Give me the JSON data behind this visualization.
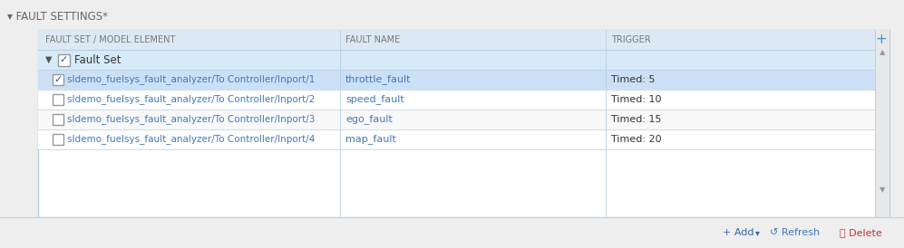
{
  "title": "FAULT SETTINGS*",
  "title_color": "#666666",
  "title_arrow": "▾",
  "bg_color": "#eeeeee",
  "panel_bg": "#ffffff",
  "header_bg": "#dce9f5",
  "selected_row_bg": "#cce0f5",
  "normal_row_bg": "#ffffff",
  "alt_row_bg": "#f5f5f5",
  "border_color": "#b8cfe0",
  "header_text_color": "#777777",
  "col_headers": [
    "FAULT SET / MODEL ELEMENT",
    "FAULT NAME",
    "TRIGGER"
  ],
  "fault_set_row": {
    "label": "Fault Set",
    "checked": true,
    "bg": "#d6eaf8"
  },
  "rows": [
    {
      "model_element": "sldemo_fuelsys_fault_analyzer/To Controller/Inport/1",
      "fault_name": "throttle_fault",
      "trigger": "Timed: 5",
      "checked": true,
      "selected": true,
      "bg": "#cce0f5"
    },
    {
      "model_element": "sldemo_fuelsys_fault_analyzer/To Controller/Inport/2",
      "fault_name": "speed_fault",
      "trigger": "Timed: 10",
      "checked": false,
      "selected": false,
      "bg": "#ffffff"
    },
    {
      "model_element": "sldemo_fuelsys_fault_analyzer/To Controller/Inport/3",
      "fault_name": "ego_fault",
      "trigger": "Timed: 15",
      "checked": false,
      "selected": false,
      "bg": "#f8f8f8"
    },
    {
      "model_element": "sldemo_fuelsys_fault_analyzer/To Controller/Inport/4",
      "fault_name": "map_fault",
      "trigger": "Timed: 20",
      "checked": false,
      "selected": false,
      "bg": "#ffffff"
    }
  ],
  "text_color_link": "#4477bb",
  "text_color_dark_link": "#2255aa",
  "text_color_normal": "#333333",
  "scrollbar_bg": "#e8e8e8",
  "plus_button_color": "#3399cc",
  "btn_add_color": "#3366aa",
  "btn_refresh_color": "#4477bb",
  "btn_delete_color": "#cc3333"
}
